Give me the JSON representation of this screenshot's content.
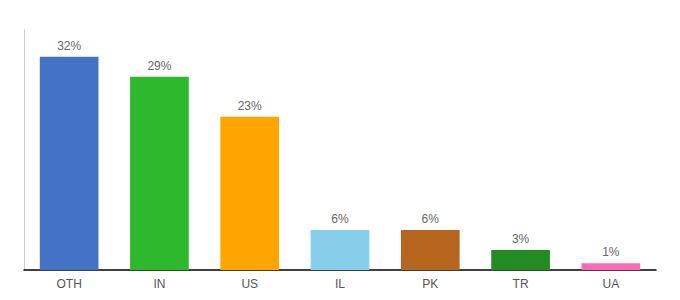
{
  "chart_data": {
    "type": "bar",
    "categories": [
      "OTH",
      "IN",
      "US",
      "IL",
      "PK",
      "TR",
      "UA"
    ],
    "values": [
      32,
      29,
      23,
      6,
      6,
      3,
      1
    ],
    "value_labels": [
      "32%",
      "29%",
      "23%",
      "6%",
      "6%",
      "3%",
      "1%"
    ],
    "colors": [
      "#4472c4",
      "#2db82d",
      "#ffa500",
      "#87ceeb",
      "#b5651d",
      "#228b22",
      "#ff69b4"
    ],
    "ylim": [
      0,
      36
    ],
    "data_labels": true,
    "tick_labels": "x",
    "grid": false
  }
}
